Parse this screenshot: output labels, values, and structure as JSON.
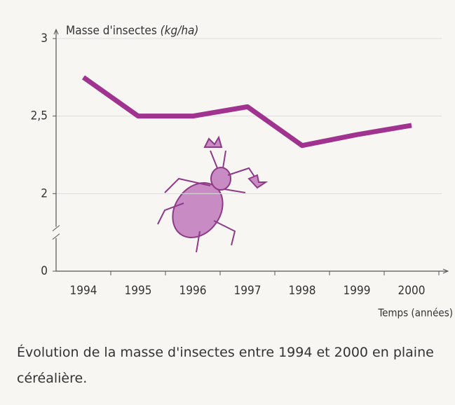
{
  "chart_data": {
    "type": "line",
    "y_label": "Masse d'insectes",
    "y_unit": "(kg/ha)",
    "x_label": "Temps (années)",
    "categories": [
      "1994",
      "1995",
      "1996",
      "1997",
      "1998",
      "1999",
      "2000"
    ],
    "series": [
      {
        "color": "#a0338f",
        "values": [
          2.75,
          2.5,
          2.5,
          2.56,
          2.31,
          2.38,
          2.44
        ]
      }
    ],
    "ylim": [
      0,
      3
    ],
    "yticks": [
      0,
      2,
      {
        "value": 2.5,
        "label": "2,5"
      },
      3
    ],
    "y_axis_break": true,
    "grid": true
  },
  "caption": "Évolution de la masse d'insectes entre 1994 et 2000 en plaine céréalière."
}
